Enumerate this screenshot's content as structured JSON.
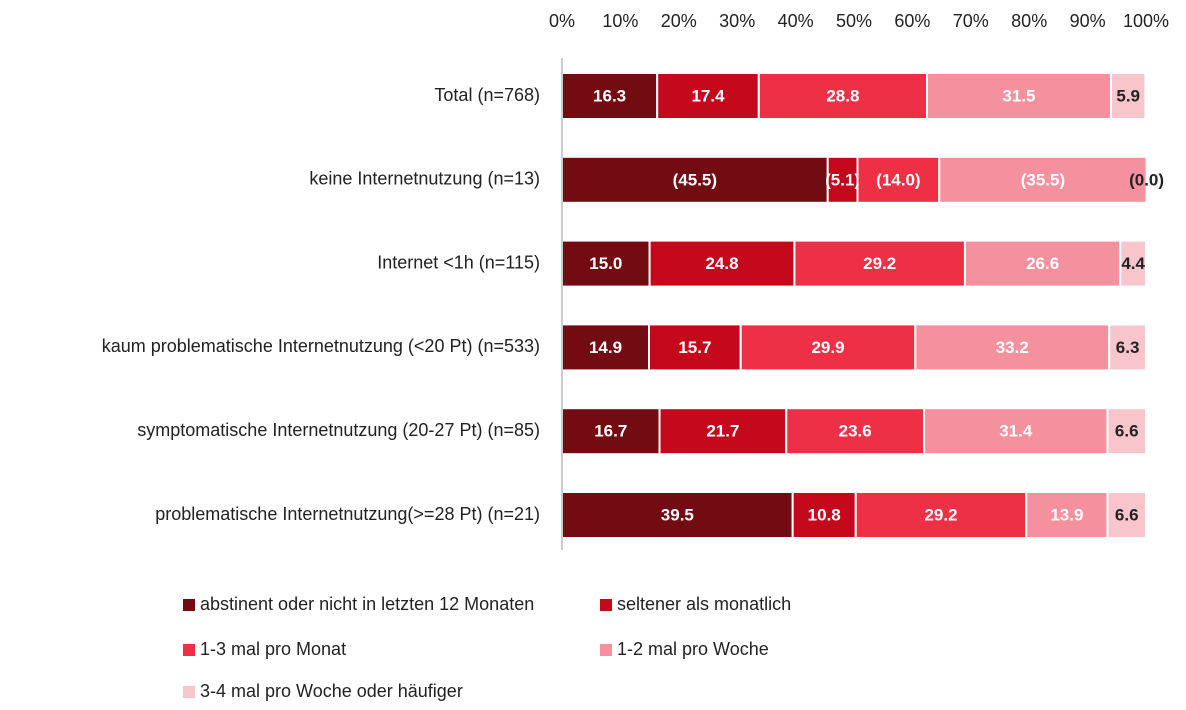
{
  "chart_data": {
    "type": "stacked-bar-horizontal",
    "categories": [
      "Total (n=768)",
      "keine Internetnutzung (n=13)",
      "Internet <1h (n=115)",
      "kaum problematische Internetnutzung (<20 Pt) (n=533)",
      "symptomatische Internetnutzung (20-27 Pt) (n=85)",
      "problematische Internetnutzung(>=28 Pt) (n=21)"
    ],
    "series": [
      {
        "name": "abstinent oder nicht in letzten 12 Monaten",
        "color": "#730b13",
        "values": [
          16.3,
          45.5,
          15.0,
          14.9,
          16.7,
          39.5
        ],
        "value_labels": [
          "16.3",
          "(45.5)",
          "15.0",
          "14.9",
          "16.7",
          "39.5"
        ]
      },
      {
        "name": "seltener als monatlich",
        "color": "#c4091d",
        "values": [
          17.4,
          5.1,
          24.8,
          15.7,
          21.7,
          10.8
        ],
        "value_labels": [
          "17.4",
          "(5.1)",
          "24.8",
          "15.7",
          "21.7",
          "10.8"
        ]
      },
      {
        "name": "1-3 mal pro Monat",
        "color": "#ee3047",
        "values": [
          28.8,
          14.0,
          29.2,
          29.9,
          23.6,
          29.2
        ],
        "value_labels": [
          "28.8",
          "(14.0)",
          "29.2",
          "29.9",
          "23.6",
          "29.2"
        ]
      },
      {
        "name": "1-2 mal pro Woche",
        "color": "#f5919e",
        "values": [
          31.5,
          35.5,
          26.6,
          33.2,
          31.4,
          13.9
        ],
        "value_labels": [
          "31.5",
          "(35.5)",
          "26.6",
          "33.2",
          "31.4",
          "13.9"
        ]
      },
      {
        "name": "3-4 mal pro Woche oder häufiger",
        "color": "#f9c5cc",
        "values": [
          5.9,
          0.0,
          4.4,
          6.3,
          6.6,
          6.6
        ],
        "value_labels": [
          "5.9",
          "(0.0)",
          "4.4",
          "6.3",
          "6.6",
          "6.6"
        ]
      }
    ],
    "xlim": [
      0,
      100
    ],
    "xticks": [
      {
        "value": 0,
        "label": "0%"
      },
      {
        "value": 10,
        "label": "10%"
      },
      {
        "value": 20,
        "label": "20%"
      },
      {
        "value": 30,
        "label": "30%"
      },
      {
        "value": 40,
        "label": "40%"
      },
      {
        "value": 50,
        "label": "50%"
      },
      {
        "value": 60,
        "label": "60%"
      },
      {
        "value": 70,
        "label": "70%"
      },
      {
        "value": 80,
        "label": "80%"
      },
      {
        "value": 90,
        "label": "90%"
      },
      {
        "value": 100,
        "label": "100%"
      }
    ]
  }
}
